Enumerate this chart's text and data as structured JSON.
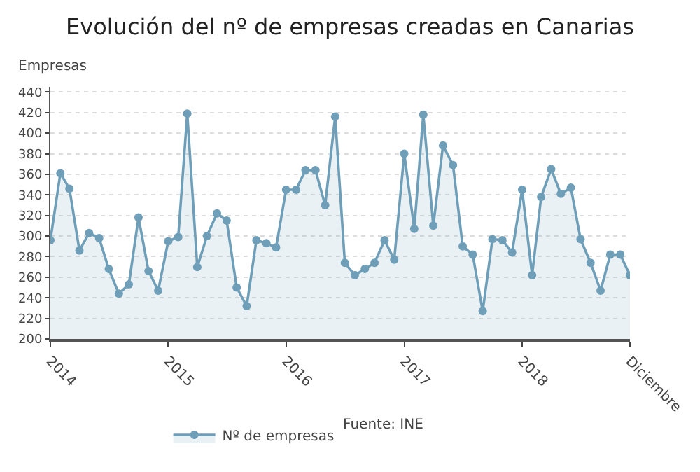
{
  "chart_data": {
    "type": "area",
    "title": "Evolución del nº de empresas creadas en Canarias",
    "ylabel": "Empresas",
    "x": [
      "2014-01",
      "2014-02",
      "2014-03",
      "2014-04",
      "2014-05",
      "2014-06",
      "2014-07",
      "2014-08",
      "2014-09",
      "2014-10",
      "2014-11",
      "2014-12",
      "2015-01",
      "2015-02",
      "2015-03",
      "2015-04",
      "2015-05",
      "2015-06",
      "2015-07",
      "2015-08",
      "2015-09",
      "2015-10",
      "2015-11",
      "2015-12",
      "2016-01",
      "2016-02",
      "2016-03",
      "2016-04",
      "2016-05",
      "2016-06",
      "2016-07",
      "2016-08",
      "2016-09",
      "2016-10",
      "2016-11",
      "2016-12",
      "2017-01",
      "2017-02",
      "2017-03",
      "2017-04",
      "2017-05",
      "2017-06",
      "2017-07",
      "2017-08",
      "2017-09",
      "2017-10",
      "2017-11",
      "2017-12",
      "2018-01",
      "2018-02",
      "2018-03",
      "2018-04",
      "2018-05",
      "2018-06",
      "2018-07",
      "2018-08",
      "2018-09",
      "2018-10",
      "2018-11",
      "2018-12"
    ],
    "series": [
      {
        "name": "Nº de empresas",
        "color": "#6f9fb8",
        "values": [
          296,
          361,
          346,
          286,
          303,
          298,
          268,
          244,
          253,
          318,
          266,
          247,
          295,
          299,
          419,
          270,
          300,
          322,
          315,
          250,
          232,
          296,
          293,
          289,
          345,
          345,
          364,
          364,
          330,
          416,
          274,
          262,
          268,
          274,
          296,
          277,
          380,
          307,
          418,
          310,
          388,
          369,
          290,
          282,
          227,
          297,
          296,
          284,
          345,
          262,
          338,
          365,
          341,
          347,
          297,
          274,
          247,
          282,
          282,
          262
        ]
      }
    ],
    "ylim": [
      200,
      445
    ],
    "yticks": [
      200,
      220,
      240,
      260,
      280,
      300,
      320,
      340,
      360,
      380,
      400,
      420,
      440
    ],
    "xlim": [
      "2014-01",
      "2018-12"
    ],
    "xticks": [
      {
        "value": "2014-01",
        "label": "2014"
      },
      {
        "value": "2015-01",
        "label": "2015"
      },
      {
        "value": "2016-01",
        "label": "2016"
      },
      {
        "value": "2017-01",
        "label": "2017"
      },
      {
        "value": "2018-01",
        "label": "2018"
      },
      {
        "value": "2018-12",
        "label": "Diciembre"
      }
    ],
    "grid": "y",
    "legend": "bottom",
    "marker": "circle",
    "line_style": "solid",
    "annotations": [
      "Fuente: INE"
    ]
  }
}
